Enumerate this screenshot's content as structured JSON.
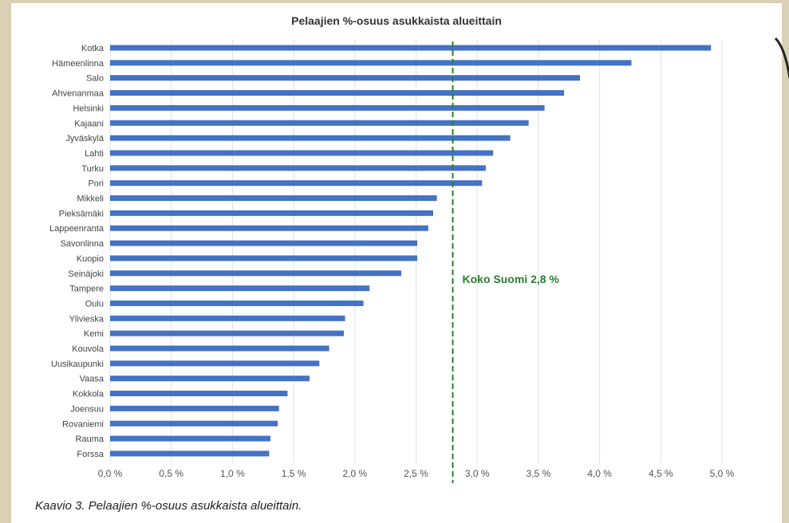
{
  "chart_data": {
    "type": "bar",
    "orientation": "horizontal",
    "title": "Pelaajien %-osuus asukkaista alueittain",
    "categories": [
      "Kotka",
      "Hämeenlinna",
      "Salo",
      "Ahvenanmaa",
      "Helsinki",
      "Kajaani",
      "Jyväskylä",
      "Lahti",
      "Turku",
      "Pori",
      "Mikkeli",
      "Pieksämäki",
      "Lappeenranta",
      "Savonlinna",
      "Kuopio",
      "Seinäjoki",
      "Tampere",
      "Oulu",
      "Ylivieska",
      "Kemi",
      "Kouvola",
      "Uusikaupunki",
      "Vaasa",
      "Kokkola",
      "Joensuu",
      "Rovaniemi",
      "Rauma",
      "Forssa"
    ],
    "values": [
      4.91,
      4.26,
      3.84,
      3.71,
      3.55,
      3.42,
      3.27,
      3.13,
      3.07,
      3.04,
      2.67,
      2.64,
      2.6,
      2.51,
      2.51,
      2.38,
      2.12,
      2.07,
      1.92,
      1.91,
      1.79,
      1.71,
      1.63,
      1.45,
      1.38,
      1.37,
      1.31,
      1.3
    ],
    "xlim": [
      0,
      5.0
    ],
    "x_ticks": [
      "0,0 %",
      "0,5 %",
      "1,0 %",
      "1,5 %",
      "2,0 %",
      "2,5 %",
      "3,0 %",
      "3,5 %",
      "4,0 %",
      "4,5 %",
      "5,0 %"
    ],
    "grid": "vertical",
    "bar_color": "#4472c4",
    "reference_line": {
      "value": 2.8,
      "label": "Koko Suomi 2,8 %",
      "color": "#2e7d32",
      "style": "dashed"
    }
  },
  "caption": "Kaavio 3. Pelaajien %-osuus asukkaista alueittain."
}
